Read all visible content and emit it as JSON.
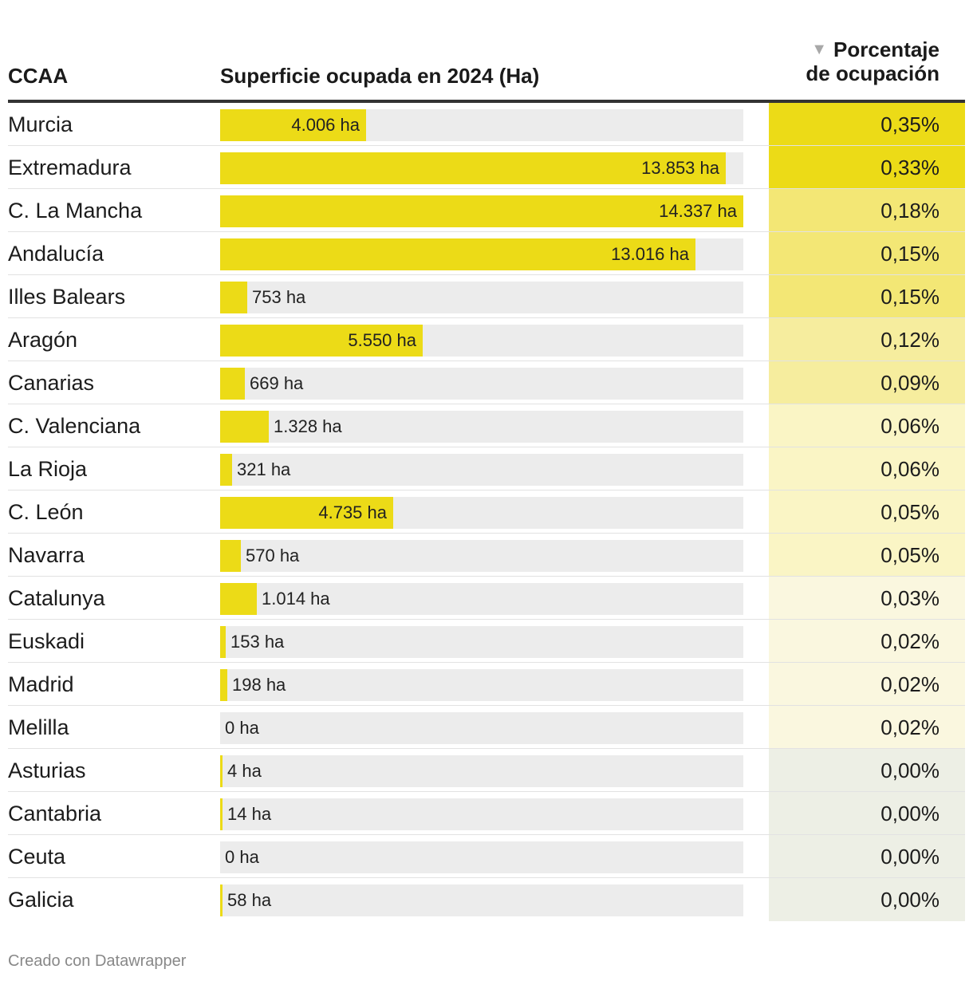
{
  "colors": {
    "bar": "#ecdb17",
    "track": "#ececec",
    "heat_high": "#ecdb17",
    "heat_mid": "#f3e775",
    "heat_midlow": "#f6ed9e",
    "heat_low": "#faf5c5",
    "heat_vlow": "#faf7df",
    "heat_zero": "#edefe5"
  },
  "header": {
    "col1": "CCAA",
    "col2": "Superficie ocupada en 2024 (Ha)",
    "col3_line1": "Porcentaje",
    "col3_line2": "de ocupación"
  },
  "footer": {
    "credit": "Creado con Datawrapper"
  },
  "chart_data": {
    "type": "table",
    "title": "",
    "columns": [
      "CCAA",
      "Superficie ocupada en 2024 (Ha)",
      "Porcentaje de ocupación"
    ],
    "sorted_by": "Porcentaje de ocupación",
    "sort_order": "descending",
    "bar_max": 14337,
    "rows": [
      {
        "name": "Murcia",
        "ha": 4006,
        "label": "4.006 ha",
        "pct": 0.35,
        "pct_label": "0,35%"
      },
      {
        "name": "Extremadura",
        "ha": 13853,
        "label": "13.853 ha",
        "pct": 0.33,
        "pct_label": "0,33%"
      },
      {
        "name": "C. La Mancha",
        "ha": 14337,
        "label": "14.337 ha",
        "pct": 0.18,
        "pct_label": "0,18%"
      },
      {
        "name": "Andalucía",
        "ha": 13016,
        "label": "13.016 ha",
        "pct": 0.15,
        "pct_label": "0,15%"
      },
      {
        "name": "Illes Balears",
        "ha": 753,
        "label": "753 ha",
        "pct": 0.15,
        "pct_label": "0,15%"
      },
      {
        "name": "Aragón",
        "ha": 5550,
        "label": "5.550 ha",
        "pct": 0.12,
        "pct_label": "0,12%"
      },
      {
        "name": "Canarias",
        "ha": 669,
        "label": "669 ha",
        "pct": 0.09,
        "pct_label": "0,09%"
      },
      {
        "name": "C. Valenciana",
        "ha": 1328,
        "label": "1.328 ha",
        "pct": 0.06,
        "pct_label": "0,06%"
      },
      {
        "name": "La Rioja",
        "ha": 321,
        "label": "321 ha",
        "pct": 0.06,
        "pct_label": "0,06%"
      },
      {
        "name": "C. León",
        "ha": 4735,
        "label": "4.735 ha",
        "pct": 0.05,
        "pct_label": "0,05%"
      },
      {
        "name": "Navarra",
        "ha": 570,
        "label": "570 ha",
        "pct": 0.05,
        "pct_label": "0,05%"
      },
      {
        "name": "Catalunya",
        "ha": 1014,
        "label": "1.014 ha",
        "pct": 0.03,
        "pct_label": "0,03%"
      },
      {
        "name": "Euskadi",
        "ha": 153,
        "label": "153 ha",
        "pct": 0.02,
        "pct_label": "0,02%"
      },
      {
        "name": "Madrid",
        "ha": 198,
        "label": "198 ha",
        "pct": 0.02,
        "pct_label": "0,02%"
      },
      {
        "name": "Melilla",
        "ha": 0,
        "label": "0 ha",
        "pct": 0.02,
        "pct_label": "0,02%"
      },
      {
        "name": "Asturias",
        "ha": 4,
        "label": "4 ha",
        "pct": 0.0,
        "pct_label": "0,00%"
      },
      {
        "name": "Cantabria",
        "ha": 14,
        "label": "14 ha",
        "pct": 0.0,
        "pct_label": "0,00%"
      },
      {
        "name": "Ceuta",
        "ha": 0,
        "label": "0 ha",
        "pct": 0.0,
        "pct_label": "0,00%"
      },
      {
        "name": "Galicia",
        "ha": 58,
        "label": "58 ha",
        "pct": 0.0,
        "pct_label": "0,00%"
      }
    ]
  }
}
